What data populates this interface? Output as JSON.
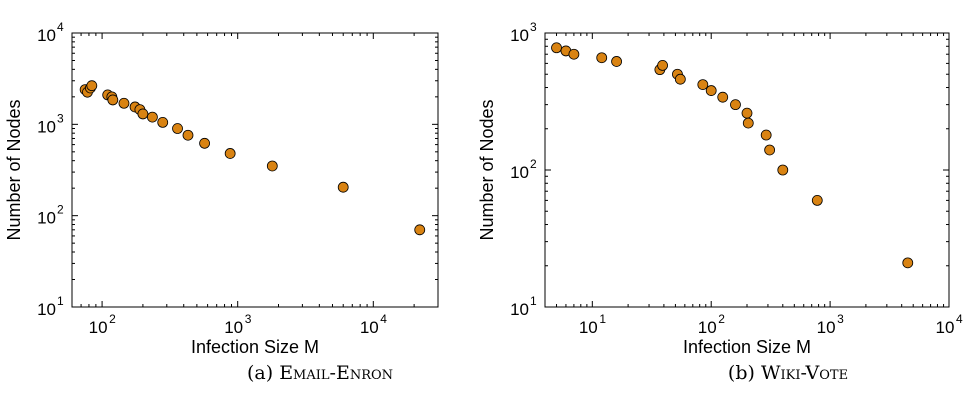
{
  "chart_data": [
    {
      "type": "scatter",
      "caption_prefix": "(a)",
      "caption_name": "Email-Enron",
      "xlabel": "Infection Size M",
      "ylabel": "Number of Nodes",
      "xscale": "log",
      "yscale": "log",
      "xlim": [
        60,
        30000
      ],
      "ylim": [
        10,
        10000
      ],
      "xticks": [
        100,
        1000,
        10000
      ],
      "yticks": [
        10,
        100,
        1000,
        10000
      ],
      "grid": false,
      "marker_color": "#d98312",
      "points": [
        {
          "x": 75,
          "y": 2400
        },
        {
          "x": 78,
          "y": 2250
        },
        {
          "x": 82,
          "y": 2500
        },
        {
          "x": 84,
          "y": 2650
        },
        {
          "x": 110,
          "y": 2100
        },
        {
          "x": 118,
          "y": 2000
        },
        {
          "x": 120,
          "y": 1850
        },
        {
          "x": 145,
          "y": 1700
        },
        {
          "x": 175,
          "y": 1550
        },
        {
          "x": 190,
          "y": 1450
        },
        {
          "x": 200,
          "y": 1300
        },
        {
          "x": 235,
          "y": 1200
        },
        {
          "x": 280,
          "y": 1050
        },
        {
          "x": 360,
          "y": 900
        },
        {
          "x": 430,
          "y": 760
        },
        {
          "x": 570,
          "y": 620
        },
        {
          "x": 880,
          "y": 480
        },
        {
          "x": 1800,
          "y": 350
        },
        {
          "x": 6000,
          "y": 205
        },
        {
          "x": 22000,
          "y": 70
        }
      ]
    },
    {
      "type": "scatter",
      "caption_prefix": "(b)",
      "caption_name": "Wiki-Vote",
      "xlabel": "Infection Size M",
      "ylabel": "Number of Nodes",
      "xscale": "log",
      "yscale": "log",
      "xlim": [
        4,
        10000
      ],
      "ylim": [
        10,
        1000
      ],
      "xticks": [
        10,
        100,
        1000,
        10000
      ],
      "yticks": [
        10,
        100,
        1000
      ],
      "grid": false,
      "marker_color": "#d98312",
      "points": [
        {
          "x": 5,
          "y": 780
        },
        {
          "x": 6,
          "y": 740
        },
        {
          "x": 7,
          "y": 700
        },
        {
          "x": 12,
          "y": 660
        },
        {
          "x": 16,
          "y": 620
        },
        {
          "x": 37,
          "y": 540
        },
        {
          "x": 39,
          "y": 580
        },
        {
          "x": 52,
          "y": 500
        },
        {
          "x": 55,
          "y": 460
        },
        {
          "x": 85,
          "y": 420
        },
        {
          "x": 100,
          "y": 380
        },
        {
          "x": 125,
          "y": 340
        },
        {
          "x": 160,
          "y": 300
        },
        {
          "x": 200,
          "y": 260
        },
        {
          "x": 205,
          "y": 220
        },
        {
          "x": 290,
          "y": 180
        },
        {
          "x": 310,
          "y": 140
        },
        {
          "x": 400,
          "y": 100
        },
        {
          "x": 780,
          "y": 60
        },
        {
          "x": 4500,
          "y": 21
        }
      ]
    }
  ]
}
